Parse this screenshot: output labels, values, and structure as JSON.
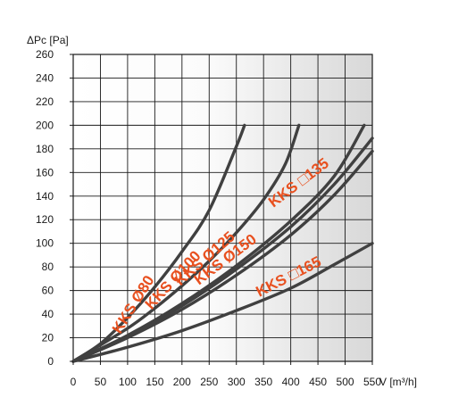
{
  "chart_data": {
    "type": "line",
    "title": "",
    "ylabel": "ΔPc [Pa]",
    "xlabel": "V [m³/h]",
    "xlim": [
      0,
      550
    ],
    "ylim": [
      0,
      260
    ],
    "x_ticks": [
      "0",
      "50",
      "100",
      "150",
      "200",
      "250",
      "300",
      "350",
      "400",
      "450",
      "500",
      "550"
    ],
    "y_ticks": [
      "0",
      "20",
      "40",
      "60",
      "80",
      "100",
      "120",
      "140",
      "160",
      "180",
      "200",
      "220",
      "240",
      "260"
    ],
    "grid": true,
    "colors": {
      "curve": "#404040",
      "label": "#e8501f",
      "frame": "#1a1a1a",
      "grid": "#1a1a1a",
      "plot_bg_right": "#d8d8d8"
    },
    "series": [
      {
        "name": "KKS Ø80",
        "x": [
          0,
          50,
          100,
          150,
          200,
          250,
          300,
          315
        ],
        "y": [
          0,
          15,
          37,
          63,
          93,
          128,
          182,
          200
        ]
      },
      {
        "name": "KKS Ø100",
        "x": [
          0,
          100,
          150,
          200,
          250,
          300,
          350,
          390,
          415
        ],
        "y": [
          0,
          28,
          45,
          64,
          85,
          109,
          137,
          167,
          200
        ]
      },
      {
        "name": "KKS Ø125",
        "x": [
          0,
          100,
          200,
          300,
          400,
          480,
          535
        ],
        "y": [
          0,
          22,
          49,
          81,
          119,
          157,
          200
        ]
      },
      {
        "name": "KKS Ø150",
        "x": [
          0,
          100,
          200,
          300,
          400,
          480,
          550
        ],
        "y": [
          0,
          20,
          44,
          73,
          107,
          141,
          178
        ]
      },
      {
        "name": "KKS □135",
        "x": [
          0,
          100,
          200,
          300,
          400,
          480,
          550
        ],
        "y": [
          0,
          21,
          47,
          78,
          114,
          150,
          189
        ]
      },
      {
        "name": "KKS □165",
        "x": [
          0,
          100,
          200,
          300,
          400,
          480,
          550
        ],
        "y": [
          0,
          12,
          26,
          43,
          62,
          82,
          100
        ]
      }
    ],
    "annotations": [
      "KKS Ø80",
      "KKS Ø100",
      "KKS Ø125",
      "KKS Ø150",
      "KKS □135",
      "KKS □165"
    ]
  }
}
